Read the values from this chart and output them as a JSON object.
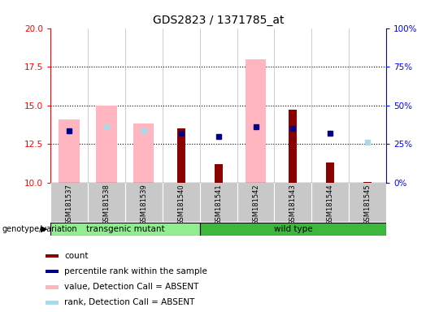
{
  "title": "GDS2823 / 1371785_at",
  "samples": [
    "GSM181537",
    "GSM181538",
    "GSM181539",
    "GSM181540",
    "GSM181541",
    "GSM181542",
    "GSM181543",
    "GSM181544",
    "GSM181545"
  ],
  "groups": [
    "transgenic mutant",
    "transgenic mutant",
    "transgenic mutant",
    "transgenic mutant",
    "wild type",
    "wild type",
    "wild type",
    "wild type",
    "wild type"
  ],
  "left_ylim": [
    10,
    20
  ],
  "right_ylim": [
    0,
    100
  ],
  "left_yticks": [
    10,
    12.5,
    15,
    17.5,
    20
  ],
  "right_yticks": [
    0,
    25,
    50,
    75,
    100
  ],
  "right_yticklabels": [
    "0%",
    "25%",
    "50%",
    "75%",
    "100%"
  ],
  "pink_bar_tops": [
    14.1,
    15.0,
    13.8,
    null,
    null,
    18.0,
    null,
    null,
    null
  ],
  "red_bar_tops": [
    null,
    null,
    null,
    13.5,
    11.2,
    null,
    14.7,
    11.3,
    10.05
  ],
  "blue_sq_y": [
    13.35,
    null,
    null,
    13.2,
    13.0,
    13.6,
    13.5,
    13.2,
    null
  ],
  "lblue_sq_y": [
    null,
    13.6,
    13.35,
    null,
    null,
    null,
    null,
    null,
    12.6
  ],
  "bar_base": 10,
  "pink_bar_width": 0.55,
  "red_bar_width": 0.22,
  "pink_color": "#FFB6C1",
  "red_color": "#8B0000",
  "blue_color": "#00008B",
  "lblue_color": "#ADD8E6",
  "grid_color": "black",
  "sample_bg": "#C8C8C8",
  "group_colors": {
    "transgenic mutant": "#90EE90",
    "wild type": "#3CB83C"
  },
  "genotype_label": "genotype/variation",
  "legend_items": [
    {
      "color": "#8B0000",
      "label": "count"
    },
    {
      "color": "#00008B",
      "label": "percentile rank within the sample"
    },
    {
      "color": "#FFB6C1",
      "label": "value, Detection Call = ABSENT"
    },
    {
      "color": "#ADD8E6",
      "label": "rank, Detection Call = ABSENT"
    }
  ]
}
